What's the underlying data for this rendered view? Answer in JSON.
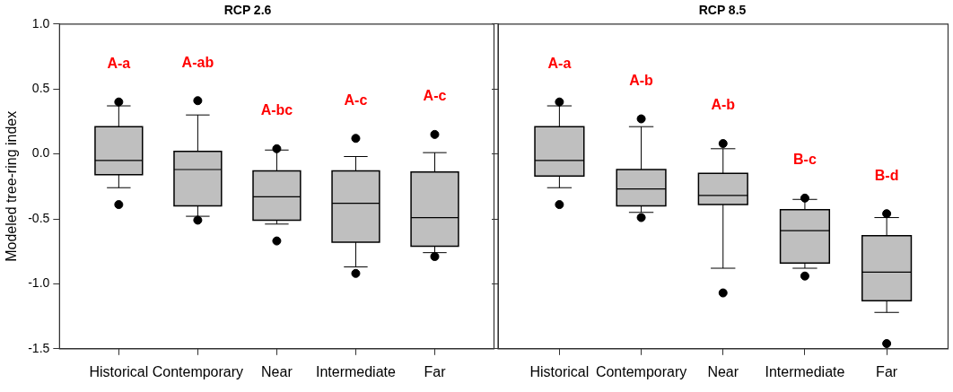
{
  "chart_data": [
    {
      "type": "box",
      "title": "RCP 2.6",
      "ylabel": "Modeled tree-ring index",
      "categories": [
        "Historical",
        "Contemporary",
        "Near",
        "Intermediate",
        "Far"
      ],
      "color": "#bfbfbf",
      "boxes": [
        {
          "low": -0.26,
          "q1": -0.16,
          "median": -0.05,
          "q3": 0.21,
          "high": 0.37,
          "outliers": [
            0.4,
            -0.39
          ]
        },
        {
          "low": -0.48,
          "q1": -0.4,
          "median": -0.12,
          "q3": 0.02,
          "high": 0.3,
          "outliers": [
            0.41,
            -0.51
          ]
        },
        {
          "low": -0.54,
          "q1": -0.51,
          "median": -0.33,
          "q3": -0.13,
          "high": 0.03,
          "outliers": [
            0.04,
            -0.67
          ]
        },
        {
          "low": -0.87,
          "q1": -0.68,
          "median": -0.38,
          "q3": -0.13,
          "high": -0.02,
          "outliers": [
            0.12,
            -0.92
          ]
        },
        {
          "low": -0.76,
          "q1": -0.71,
          "median": -0.49,
          "q3": -0.14,
          "high": 0.01,
          "outliers": [
            0.15,
            -0.79
          ]
        }
      ],
      "ylim": [
        -1.5,
        1
      ],
      "yticks": [
        -1.5,
        {
          "value": -1,
          "label": "-1.0"
        },
        -0.5,
        {
          "value": 0,
          "label": "0.0"
        },
        0.5,
        {
          "value": 1,
          "label": "1.0"
        }
      ],
      "annotations": [
        "A-a",
        "A-ab",
        "A-bc",
        "A-c",
        "A-c"
      ]
    },
    {
      "type": "box",
      "title": "RCP 8.5",
      "categories": [
        "Historical",
        "Contemporary",
        "Near",
        "Intermediate",
        "Far"
      ],
      "color": "#bfbfbf",
      "boxes": [
        {
          "low": -0.26,
          "q1": -0.17,
          "median": -0.05,
          "q3": 0.21,
          "high": 0.37,
          "outliers": [
            0.4,
            -0.39
          ]
        },
        {
          "low": -0.45,
          "q1": -0.4,
          "median": -0.27,
          "q3": -0.12,
          "high": 0.21,
          "outliers": [
            0.27,
            -0.49
          ]
        },
        {
          "low": -0.88,
          "q1": -0.39,
          "median": -0.32,
          "q3": -0.15,
          "high": 0.04,
          "outliers": [
            0.08,
            -1.07
          ]
        },
        {
          "low": -0.88,
          "q1": -0.84,
          "median": -0.59,
          "q3": -0.43,
          "high": -0.35,
          "outliers": [
            -0.34,
            -0.94
          ]
        },
        {
          "low": -1.22,
          "q1": -1.13,
          "median": -0.91,
          "q3": -0.63,
          "high": -0.49,
          "outliers": [
            -0.46,
            -1.46
          ]
        }
      ],
      "ylim": [
        -1.5,
        1
      ],
      "yticks": [
        -1.5,
        -1,
        -0.5,
        0,
        0.5,
        1
      ],
      "tick_labels": "x",
      "annotations": [
        "A-a",
        "A-b",
        "A-b",
        "B-c",
        "B-d"
      ]
    }
  ]
}
